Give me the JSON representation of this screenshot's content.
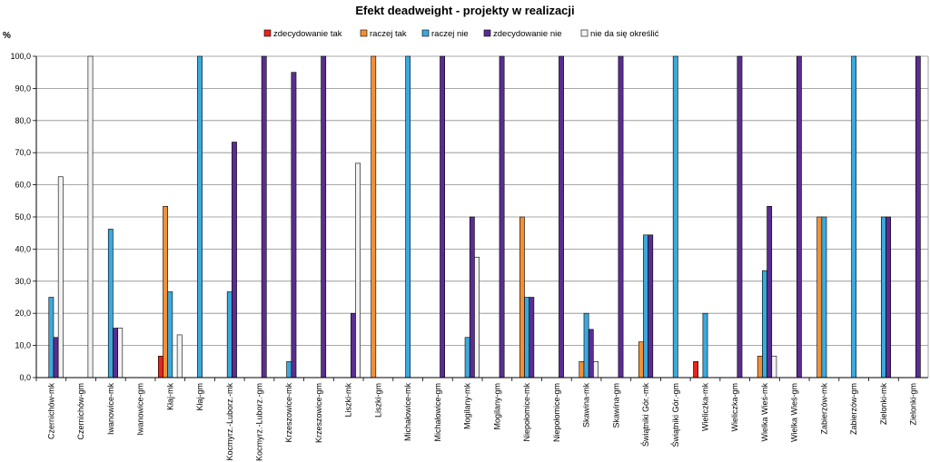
{
  "chart_data": {
    "type": "bar",
    "title": "Efekt deadweight  - projekty w realizacji",
    "ylabel": "%",
    "xlabel": "",
    "ylim": [
      0,
      100
    ],
    "yticks": [
      "0,0",
      "10,0",
      "20,0",
      "30,0",
      "40,0",
      "50,0",
      "60,0",
      "70,0",
      "80,0",
      "90,0",
      "100,0"
    ],
    "grid": true,
    "legend_position": "top",
    "categories": [
      "Czernichów-mk",
      "Czernichów-gm",
      "Iwanowice-mk",
      "Iwanowice-gm",
      "Kłaj-mk",
      "Kłaj-gm",
      "Kocmyrz.-Luborz.-mk",
      "Kocmyrz.-Luborz.-gm",
      "Krzeszowice-mk",
      "Krzeszowice-gm",
      "Liszki-mk",
      "Liszki-gm",
      "Michałowice-mk",
      "Michałowice-gm",
      "Mogilany-mk",
      "Mogilany-gm",
      "Niepołomice-mk",
      "Niepołomice-gm",
      "Skawina-mk",
      "Skawina-gm",
      "Świątniki Gór.-mk",
      "Świątniki Gór.-gm",
      "Wieliczka-mk",
      "Wieliczka-gm",
      "Wielka Wieś-mk",
      "Wielka Wieś-gm",
      "Zabierzów-mk",
      "Zabierzów-gm",
      "Zielonki-mk",
      "Zielonki-gm"
    ],
    "series": [
      {
        "name": "zdecydowanie tak",
        "color": "#e8251b",
        "values": [
          0,
          0,
          0,
          0,
          6.7,
          0,
          0,
          0,
          0,
          0,
          0,
          0,
          0,
          0,
          0,
          0,
          0,
          0,
          0,
          0,
          0,
          0,
          5.0,
          0,
          0,
          0,
          0,
          0,
          0,
          0
        ]
      },
      {
        "name": "raczej tak",
        "color": "#f39036",
        "values": [
          0,
          0,
          0,
          0,
          53.3,
          0,
          0,
          0,
          0,
          0,
          0,
          100,
          0,
          0,
          0,
          0,
          50.0,
          0,
          5.0,
          0,
          11.1,
          0,
          0,
          0,
          6.7,
          0,
          50.0,
          0,
          0,
          0
        ]
      },
      {
        "name": "raczej nie",
        "color": "#3ba9dd",
        "values": [
          25.0,
          0,
          46.2,
          0,
          26.7,
          100,
          26.7,
          0,
          5.0,
          0,
          0,
          0,
          100,
          0,
          12.5,
          0,
          25.0,
          0,
          20.0,
          0,
          44.4,
          100,
          20.0,
          0,
          33.3,
          0,
          50.0,
          100,
          50.0,
          0
        ]
      },
      {
        "name": "zdecydowanie nie",
        "color": "#5b2d91",
        "values": [
          12.5,
          0,
          15.4,
          0,
          0,
          0,
          73.3,
          100,
          95.0,
          100,
          20.0,
          0,
          0,
          100,
          50.0,
          100,
          25.0,
          100,
          15.0,
          100,
          44.4,
          0,
          0,
          100,
          53.3,
          100,
          0,
          0,
          50.0,
          100
        ]
      },
      {
        "name": "nie da się określić",
        "color": "#f2f2f2",
        "values": [
          62.5,
          100,
          15.4,
          0,
          13.3,
          0,
          0,
          0,
          0,
          0,
          66.7,
          0,
          0,
          0,
          37.5,
          0,
          0,
          0,
          5.0,
          0,
          0,
          0,
          0,
          0,
          6.7,
          0,
          0,
          0,
          0,
          0
        ]
      }
    ]
  }
}
